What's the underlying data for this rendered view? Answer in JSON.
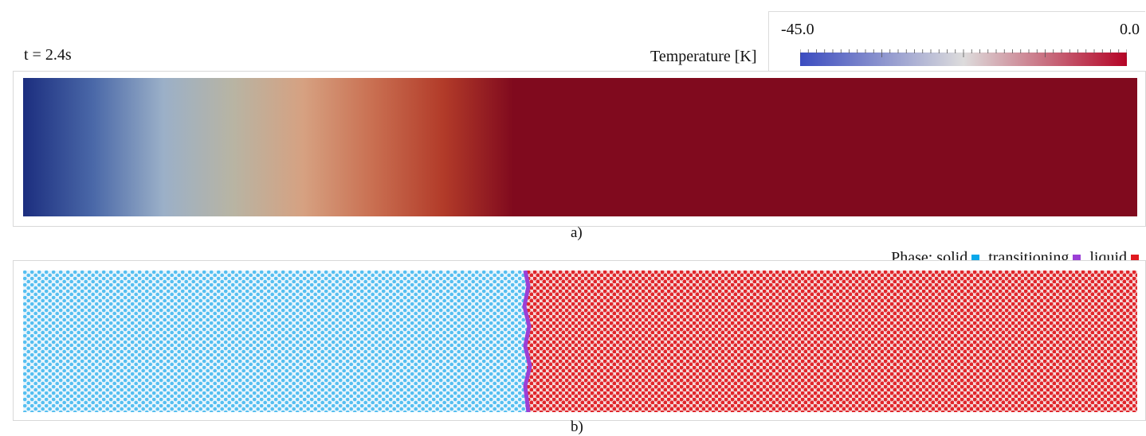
{
  "time_label": "t = 2.4s",
  "colorbar": {
    "title": "Temperature [K]",
    "min_label": "-45.0",
    "max_label": "0.0",
    "min": -45.0,
    "max": 0.0,
    "colormap": [
      "#3b4cc0",
      "#dddcdc",
      "#b40426"
    ]
  },
  "panel_a": {
    "caption": "a)",
    "gradient_stops": [
      "#1c2e7f",
      "#4a68a8",
      "#9bb0c8",
      "#b8b4a3",
      "#d6a181",
      "#c96f51",
      "#b23b29",
      "#800a1e"
    ],
    "front_color": "#800a1e"
  },
  "panel_b": {
    "caption": "b)",
    "legend": {
      "prefix": "Phase: solid",
      "transitioning": ", transitioning",
      "liquid": ", liquid"
    },
    "colors": {
      "solid": "#0aa8ea",
      "transitioning": "#9b3fd6",
      "liquid": "#e01a20"
    }
  }
}
